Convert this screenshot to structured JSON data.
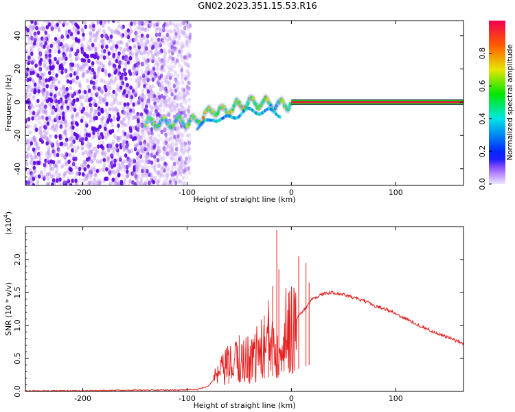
{
  "title": "GN02.2023.351.15.53.R16",
  "chart_data": [
    {
      "type": "heatmap",
      "name": "spectrogram",
      "xlabel": "Height of straight line (km)",
      "ylabel": "Frequency (Hz)",
      "xlim": [
        -255,
        165
      ],
      "ylim": [
        -50,
        49
      ],
      "xticks": [
        -200,
        -100,
        0,
        100
      ],
      "yticks": [
        -40,
        -20,
        0,
        20,
        40
      ],
      "colorbar": {
        "label": "Normalized spectral amplitude",
        "range": [
          0,
          1
        ],
        "ticks": [
          "0.0",
          "0.2",
          "0.4",
          "0.6",
          "0.8"
        ],
        "tick_values": [
          0.0,
          0.2,
          0.4,
          0.6,
          0.8
        ]
      },
      "features": [
        {
          "name": "noise-band",
          "x_range": [
            -255,
            -97
          ],
          "y_range": [
            -50,
            49
          ],
          "amplitude": 0.2
        },
        {
          "name": "doppler-track",
          "points": [
            [
              -140,
              -13
            ],
            [
              -115,
              -12
            ],
            [
              -95,
              -12
            ],
            [
              -85,
              -9
            ],
            [
              -75,
              -4
            ],
            [
              -65,
              -6
            ],
            [
              -55,
              -3
            ],
            [
              -45,
              -1
            ],
            [
              -35,
              0
            ],
            [
              -20,
              -1
            ],
            [
              -10,
              -2
            ],
            [
              0,
              0
            ]
          ],
          "amplitude": 0.5
        },
        {
          "name": "carrier-line",
          "x_range": [
            0,
            165
          ],
          "frequency": 0,
          "amplitude": 0.95
        }
      ]
    },
    {
      "type": "line",
      "name": "snr",
      "xlabel": "Height of straight line (km)",
      "ylabel": "SNR (10 * v/v)",
      "scale_label": "(x10",
      "scale_exp": "4",
      "scale_close": ")",
      "xlim": [
        -255,
        165
      ],
      "ylim": [
        0,
        2.5
      ],
      "xticks": [
        -200,
        -100,
        0,
        100
      ],
      "yticks": [
        "0.0",
        "0.5",
        "1.0",
        "1.5",
        "2.0"
      ],
      "ytick_values": [
        0,
        0.5,
        1.0,
        1.5,
        2.0
      ],
      "color": "#e62020",
      "envelope": {
        "x": [
          -255,
          -200,
          -150,
          -110,
          -90,
          -80,
          -70,
          -60,
          -50,
          -40,
          -30,
          -20,
          -10,
          0,
          10,
          20,
          30,
          40,
          50,
          60,
          70,
          80,
          90,
          100,
          110,
          120,
          130,
          140,
          150,
          165
        ],
        "y": [
          0.01,
          0.01,
          0.02,
          0.02,
          0.03,
          0.08,
          0.25,
          0.4,
          0.45,
          0.5,
          0.6,
          0.75,
          0.85,
          1.0,
          1.2,
          1.4,
          1.48,
          1.5,
          1.47,
          1.42,
          1.37,
          1.3,
          1.25,
          1.18,
          1.1,
          1.02,
          0.95,
          0.88,
          0.82,
          0.72
        ]
      },
      "spikes": [
        {
          "x": -14,
          "y": 2.45
        },
        {
          "x": -12,
          "y": 1.85
        },
        {
          "x": -18,
          "y": 1.6
        },
        {
          "x": -22,
          "y": 1.38
        },
        {
          "x": -26,
          "y": 1.15
        },
        {
          "x": -50,
          "y": 0.85
        },
        {
          "x": -60,
          "y": 0.62
        },
        {
          "x": 7,
          "y": 2.05
        },
        {
          "x": 14,
          "y": 1.95
        },
        {
          "x": 17,
          "y": 1.65
        },
        {
          "x": 3,
          "y": 1.45
        }
      ]
    }
  ]
}
